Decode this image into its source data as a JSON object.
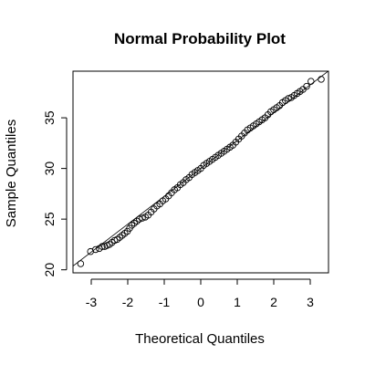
{
  "chart_data": {
    "type": "scatter",
    "title": "Normal Probability Plot",
    "xlabel": "Theoretical Quantiles",
    "ylabel": "Sample Quantiles",
    "xlim": [
      -3.5,
      3.5
    ],
    "ylim": [
      19.7,
      39.6
    ],
    "xticks": [
      -3,
      -2,
      -1,
      0,
      1,
      2,
      3
    ],
    "xtick_labels": [
      "-3",
      "-2",
      "-1",
      "0",
      "1",
      "2",
      "3"
    ],
    "yticks": [
      20,
      25,
      30,
      35
    ],
    "ytick_labels": [
      "20",
      "25",
      "30",
      "35"
    ],
    "grid": false,
    "legend": "none",
    "marker": "open-circle",
    "reference_line": {
      "slope": 2.75,
      "intercept": 30.0
    },
    "series": [
      {
        "points": [
          [
            -3.29,
            20.6
          ],
          [
            -3.02,
            21.8
          ],
          [
            -2.88,
            22.0
          ],
          [
            -2.78,
            22.1
          ],
          [
            -2.7,
            22.3
          ],
          [
            -2.63,
            22.3
          ],
          [
            -2.57,
            22.4
          ],
          [
            -2.5,
            22.5
          ],
          [
            -2.43,
            22.7
          ],
          [
            -2.36,
            22.9
          ],
          [
            -2.29,
            23.0
          ],
          [
            -2.22,
            23.2
          ],
          [
            -2.15,
            23.4
          ],
          [
            -2.08,
            23.6
          ],
          [
            -2.01,
            23.8
          ],
          [
            -1.95,
            24.1
          ],
          [
            -1.89,
            24.4
          ],
          [
            -1.82,
            24.6
          ],
          [
            -1.75,
            24.8
          ],
          [
            -1.68,
            25.0
          ],
          [
            -1.6,
            25.1
          ],
          [
            -1.52,
            25.2
          ],
          [
            -1.44,
            25.4
          ],
          [
            -1.36,
            25.7
          ],
          [
            -1.28,
            26.0
          ],
          [
            -1.2,
            26.3
          ],
          [
            -1.12,
            26.5
          ],
          [
            -1.04,
            26.8
          ],
          [
            -0.96,
            27.0
          ],
          [
            -0.88,
            27.3
          ],
          [
            -0.8,
            27.6
          ],
          [
            -0.72,
            27.9
          ],
          [
            -0.64,
            28.1
          ],
          [
            -0.56,
            28.4
          ],
          [
            -0.48,
            28.6
          ],
          [
            -0.4,
            28.9
          ],
          [
            -0.32,
            29.1
          ],
          [
            -0.24,
            29.4
          ],
          [
            -0.16,
            29.6
          ],
          [
            -0.08,
            29.8
          ],
          [
            0.0,
            30.0
          ],
          [
            0.08,
            30.3
          ],
          [
            0.16,
            30.5
          ],
          [
            0.24,
            30.7
          ],
          [
            0.32,
            30.9
          ],
          [
            0.4,
            31.1
          ],
          [
            0.48,
            31.3
          ],
          [
            0.56,
            31.5
          ],
          [
            0.64,
            31.7
          ],
          [
            0.72,
            31.9
          ],
          [
            0.8,
            32.1
          ],
          [
            0.88,
            32.3
          ],
          [
            0.96,
            32.6
          ],
          [
            1.04,
            32.9
          ],
          [
            1.12,
            33.2
          ],
          [
            1.2,
            33.5
          ],
          [
            1.28,
            33.8
          ],
          [
            1.36,
            34.0
          ],
          [
            1.44,
            34.2
          ],
          [
            1.52,
            34.4
          ],
          [
            1.6,
            34.6
          ],
          [
            1.68,
            34.8
          ],
          [
            1.76,
            35.0
          ],
          [
            1.84,
            35.3
          ],
          [
            1.92,
            35.6
          ],
          [
            2.0,
            35.8
          ],
          [
            2.08,
            36.0
          ],
          [
            2.16,
            36.2
          ],
          [
            2.24,
            36.5
          ],
          [
            2.32,
            36.7
          ],
          [
            2.4,
            36.9
          ],
          [
            2.48,
            37.0
          ],
          [
            2.56,
            37.2
          ],
          [
            2.64,
            37.4
          ],
          [
            2.72,
            37.6
          ],
          [
            2.8,
            37.8
          ],
          [
            2.9,
            38.1
          ],
          [
            3.02,
            38.6
          ],
          [
            3.3,
            38.8
          ]
        ]
      }
    ]
  }
}
